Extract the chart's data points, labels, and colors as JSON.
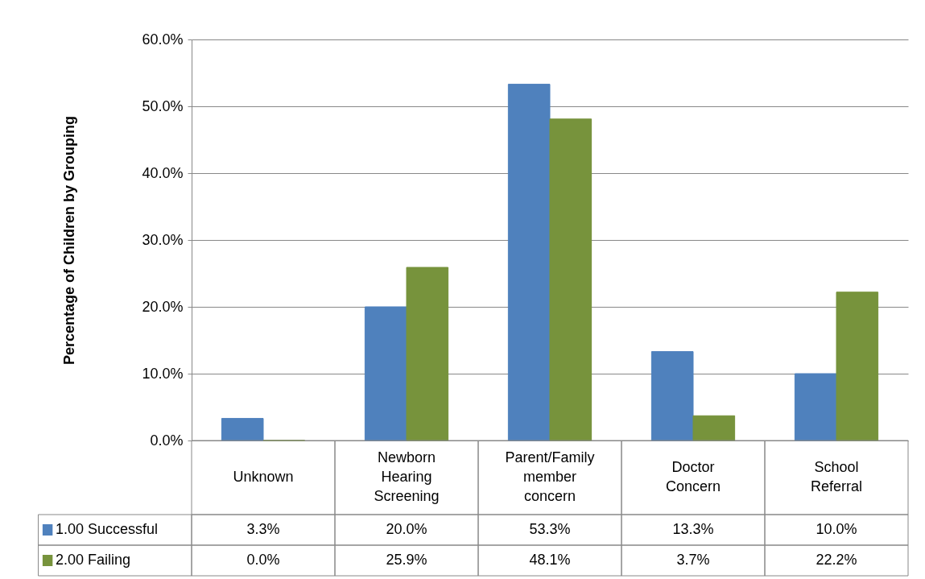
{
  "chart_data": {
    "type": "bar",
    "ylabel": "Percentage of Children by Grouping",
    "categories": [
      "Unknown",
      "Newborn Hearing Screening",
      "Parent/Family member concern",
      "Doctor Concern",
      "School Referral"
    ],
    "series": [
      {
        "name": "1.00 Successful",
        "color": "#4f81bd",
        "values": [
          3.3,
          20.0,
          53.3,
          13.3,
          10.0
        ],
        "value_labels": [
          "3.3%",
          "20.0%",
          "53.3%",
          "13.3%",
          "10.0%"
        ]
      },
      {
        "name": "2.00 Failing",
        "color": "#77933c",
        "values": [
          0.0,
          25.9,
          48.1,
          3.7,
          22.2
        ],
        "value_labels": [
          "0.0%",
          "25.9%",
          "48.1%",
          "3.7%",
          "22.2%"
        ]
      }
    ],
    "ylim": [
      0,
      60
    ],
    "yticks": [
      {
        "value": 0,
        "label": "0.0%"
      },
      {
        "value": 10,
        "label": "10.0%"
      },
      {
        "value": 20,
        "label": "20.0%"
      },
      {
        "value": 30,
        "label": "30.0%"
      },
      {
        "value": 40,
        "label": "40.0%"
      },
      {
        "value": 50,
        "label": "50.0%"
      },
      {
        "value": 60,
        "label": "60.0%"
      }
    ],
    "grid": "y",
    "legend": "bottom"
  }
}
